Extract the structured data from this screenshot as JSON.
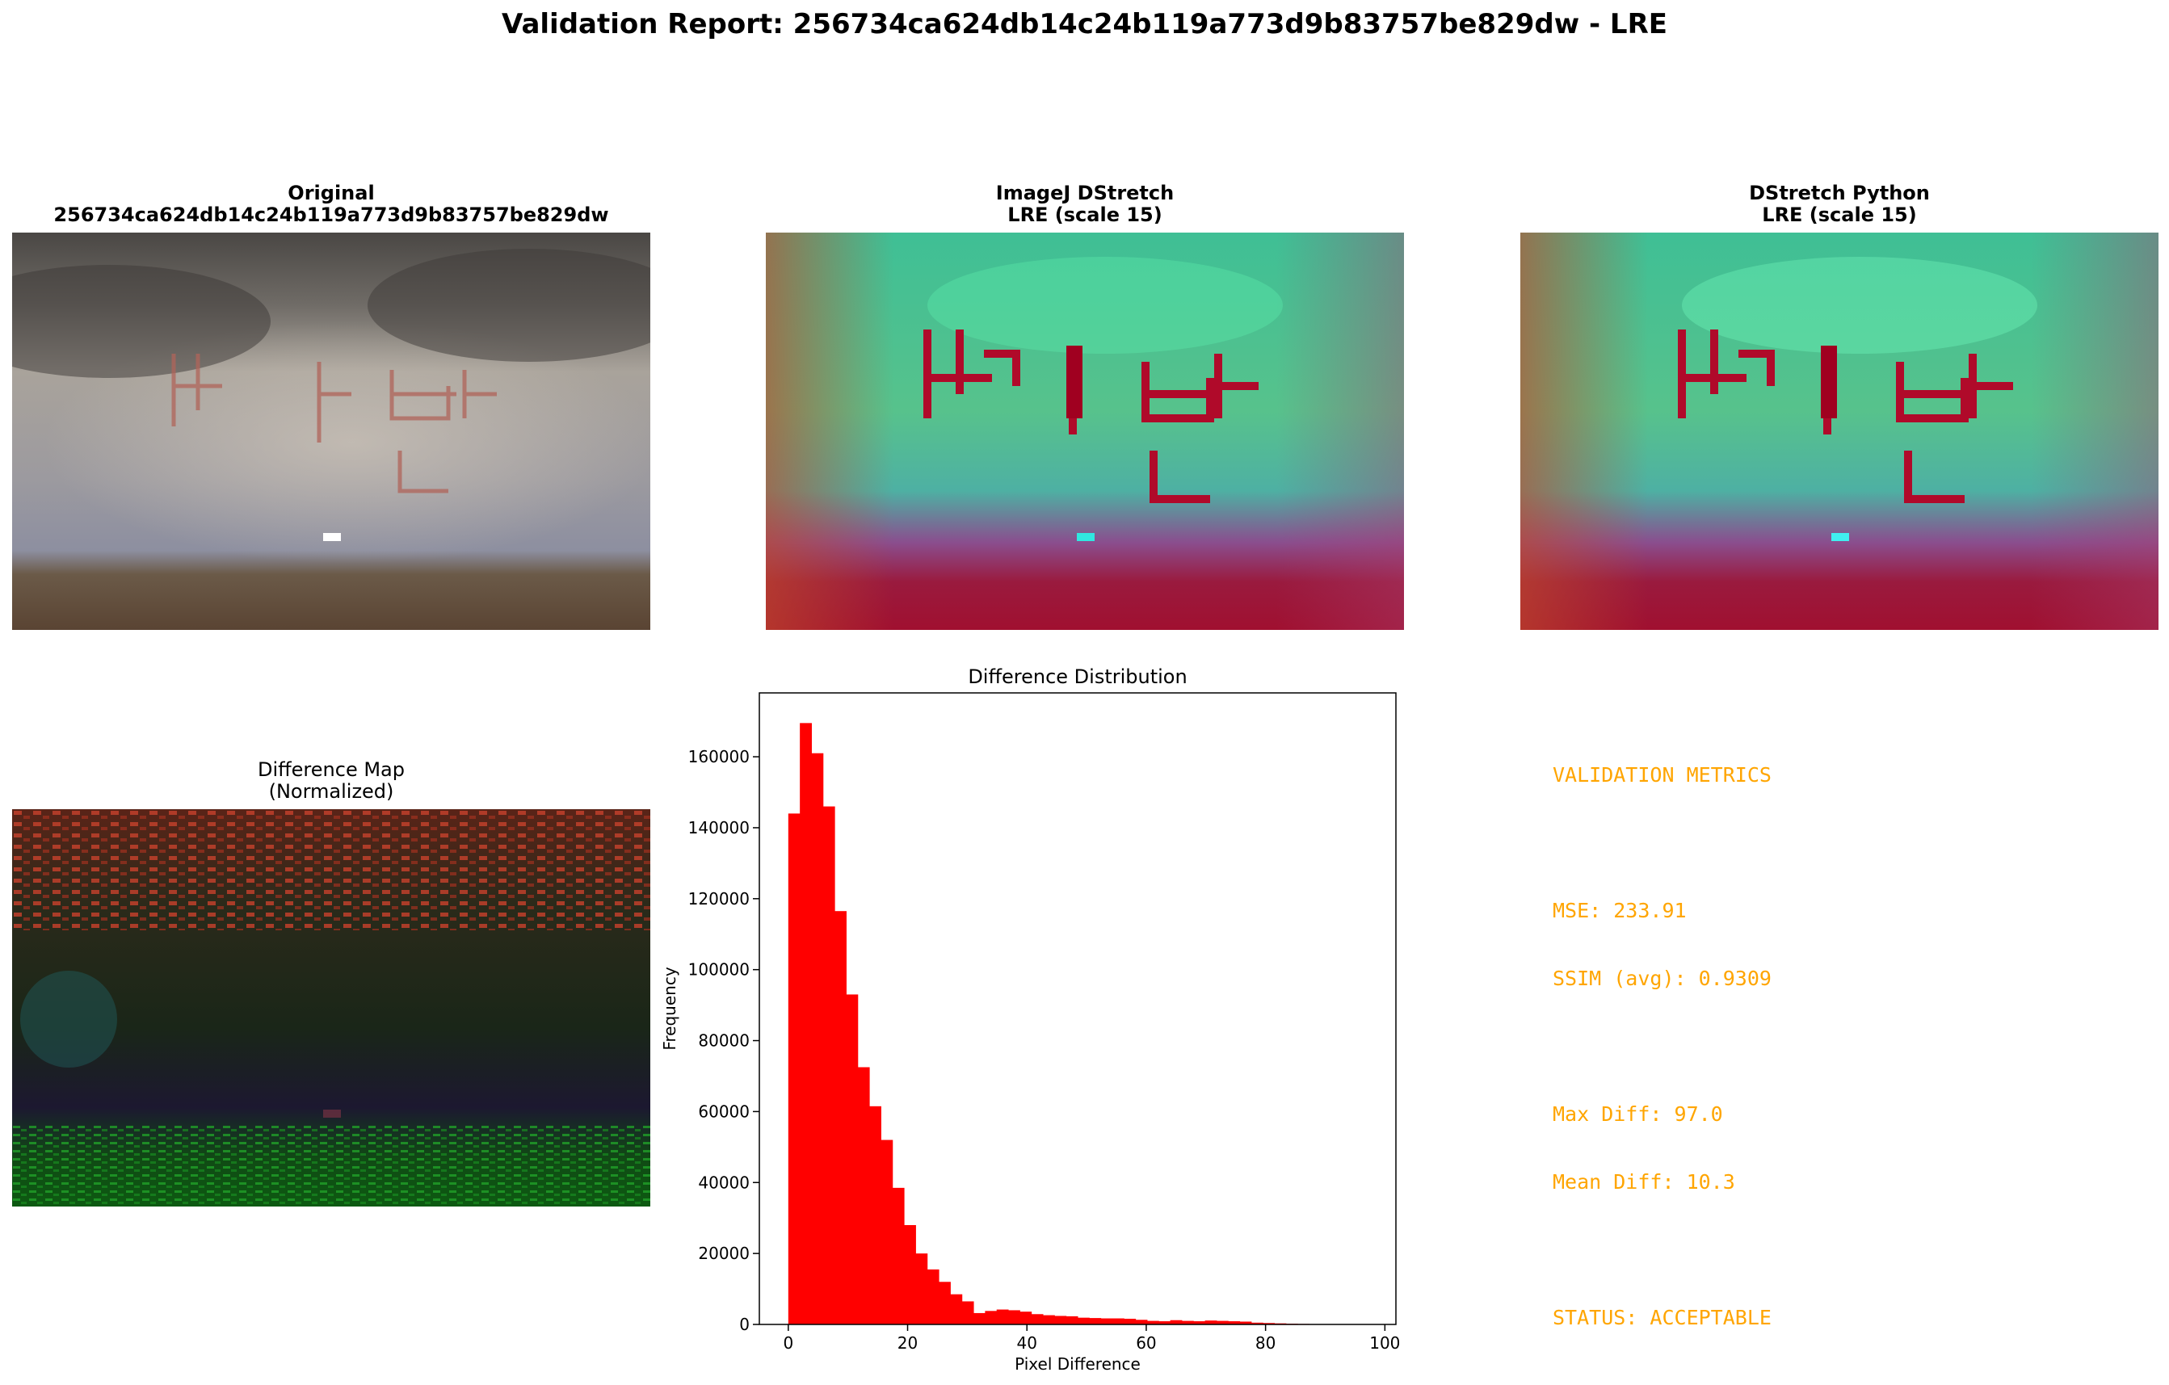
{
  "report": {
    "title": "Validation Report: 256734ca624db14c24b119a773d9b83757be829dw - LRE"
  },
  "panels": {
    "original": {
      "title_line1": "Original",
      "title_line2": "256734ca624db14c24b119a773d9b83757be829dw"
    },
    "imagej": {
      "title_line1": "ImageJ DStretch",
      "title_line2": "LRE (scale 15)"
    },
    "python": {
      "title_line1": "DStretch Python",
      "title_line2": "LRE (scale 15)"
    },
    "diffmap": {
      "title_line1": "Difference Map",
      "title_line2": "(Normalized)"
    }
  },
  "metrics": {
    "heading": "VALIDATION METRICS",
    "mse": "MSE: 233.91",
    "ssim": "SSIM (avg): 0.9309",
    "max_diff": "Max Diff: 97.0",
    "mean_diff": "Mean Diff: 10.3",
    "status": "STATUS: ACCEPTABLE",
    "color": "#ffa500"
  },
  "chart_data": {
    "type": "bar",
    "title": "Difference Distribution",
    "xlabel": "Pixel Difference",
    "ylabel": "Frequency",
    "xlim": [
      -4.85,
      101.85
    ],
    "ylim": [
      0,
      178000
    ],
    "xticks": [
      0,
      20,
      40,
      60,
      80,
      100
    ],
    "yticks": [
      0,
      20000,
      40000,
      60000,
      80000,
      100000,
      120000,
      140000,
      160000
    ],
    "bin_width": 1.94,
    "bin_starts": [
      0,
      1.94,
      3.88,
      5.82,
      7.76,
      9.7,
      11.64,
      13.58,
      15.52,
      17.46,
      19.4,
      21.34,
      23.28,
      25.22,
      27.16,
      29.1,
      31.04,
      32.98,
      34.92,
      36.86,
      38.8,
      40.74,
      42.68,
      44.62,
      46.56,
      48.5,
      50.44,
      52.38,
      54.32,
      56.26,
      58.2,
      60.14,
      62.08,
      64.02,
      65.96,
      67.9,
      69.84,
      71.78,
      73.72,
      75.66,
      77.6,
      79.54,
      81.48,
      83.42,
      85.36,
      87.3,
      89.24,
      91.18,
      93.12,
      95.06
    ],
    "values": [
      144000,
      169500,
      161000,
      146000,
      116500,
      93000,
      72500,
      61500,
      52000,
      38500,
      28000,
      20000,
      15500,
      12000,
      8500,
      6500,
      3200,
      3800,
      4200,
      4000,
      3600,
      2900,
      2600,
      2400,
      2300,
      1900,
      1800,
      1700,
      1700,
      1600,
      1300,
      1000,
      900,
      1200,
      1000,
      900,
      1100,
      1000,
      900,
      800,
      500,
      400,
      300,
      200,
      150,
      100,
      80,
      60,
      40,
      20
    ],
    "color": "#ff0000"
  }
}
